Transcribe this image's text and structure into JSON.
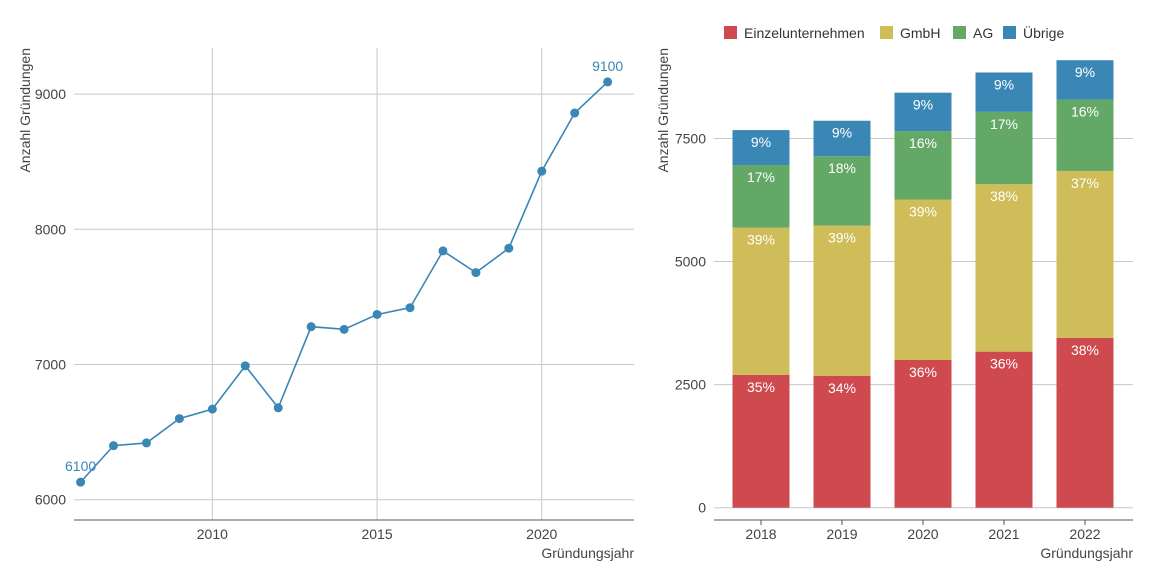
{
  "chart_data": [
    {
      "type": "line",
      "xlabel": "Gründungsjahr",
      "ylabel": "Anzahl Gründungen",
      "xlim": [
        2005.8,
        2022.8
      ],
      "ylim": [
        5850,
        9400
      ],
      "xticks": [
        2010,
        2015,
        2020
      ],
      "yticks": [
        6000,
        7000,
        8000,
        9000
      ],
      "grid": true,
      "series_color": "#3a87b6",
      "points": [
        {
          "x": 2006,
          "y": 6130
        },
        {
          "x": 2007,
          "y": 6400
        },
        {
          "x": 2008,
          "y": 6420
        },
        {
          "x": 2009,
          "y": 6600
        },
        {
          "x": 2010,
          "y": 6670
        },
        {
          "x": 2011,
          "y": 6990
        },
        {
          "x": 2012,
          "y": 6680
        },
        {
          "x": 2013,
          "y": 7280
        },
        {
          "x": 2014,
          "y": 7260
        },
        {
          "x": 2015,
          "y": 7370
        },
        {
          "x": 2016,
          "y": 7420
        },
        {
          "x": 2017,
          "y": 7840
        },
        {
          "x": 2018,
          "y": 7680
        },
        {
          "x": 2019,
          "y": 7860
        },
        {
          "x": 2020,
          "y": 8430
        },
        {
          "x": 2021,
          "y": 8860
        },
        {
          "x": 2022,
          "y": 9090
        }
      ],
      "annotations": [
        {
          "x": 2006,
          "y": 6130,
          "text": "6100"
        },
        {
          "x": 2022,
          "y": 9090,
          "text": "9100"
        }
      ]
    },
    {
      "type": "bar",
      "stacked": true,
      "xlabel": "Gründungsjahr",
      "ylabel": "Anzahl Gründungen",
      "categories": [
        "2018",
        "2019",
        "2020",
        "2021",
        "2022"
      ],
      "ylim": [
        -250,
        9500
      ],
      "yticks": [
        0,
        2500,
        5000,
        7500
      ],
      "ytick_labels": [
        "0",
        "2500",
        "5000",
        "7500"
      ],
      "grid": true,
      "legend_position": "top",
      "series": [
        {
          "name": "Einzelunternehmen",
          "color": "#cf4a4f",
          "values": [
            2700,
            2680,
            3000,
            3170,
            3450
          ],
          "labels": [
            "35%",
            "34%",
            "36%",
            "36%",
            "38%"
          ]
        },
        {
          "name": "GmbH",
          "color": "#cfbd59",
          "values": [
            2990,
            3050,
            3260,
            3400,
            3390
          ],
          "labels": [
            "39%",
            "39%",
            "39%",
            "38%",
            "37%"
          ]
        },
        {
          "name": "AG",
          "color": "#63a866",
          "values": [
            1270,
            1410,
            1390,
            1470,
            1450
          ],
          "labels": [
            "17%",
            "18%",
            "16%",
            "17%",
            "16%"
          ]
        },
        {
          "name": "Übrige",
          "color": "#3a87b6",
          "values": [
            710,
            720,
            780,
            800,
            800
          ],
          "labels": [
            "9%",
            "9%",
            "9%",
            "9%",
            "9%"
          ]
        }
      ]
    }
  ]
}
